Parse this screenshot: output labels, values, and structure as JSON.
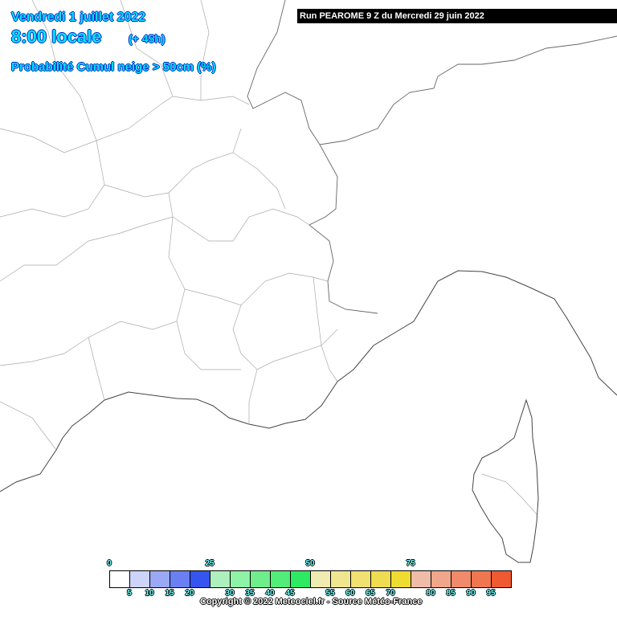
{
  "header": {
    "date": "Vendredi 1 juillet 2022",
    "time": "8:00 locale",
    "lead": "(+ 45h)",
    "parameter": "Probabilité Cumul neige > 50cm (%)",
    "run": "Run PEAROME 9 Z du Mercredi 29 juin 2022"
  },
  "legend": {
    "top_labels": [
      "0",
      "25",
      "50",
      "75"
    ],
    "bottom_labels": [
      "5",
      "10",
      "15",
      "20",
      "30",
      "35",
      "40",
      "45",
      "55",
      "60",
      "65",
      "70",
      "80",
      "85",
      "90",
      "95"
    ],
    "colors": [
      "#ffffff",
      "#ccd4fa",
      "#9aa8f5",
      "#6a80f2",
      "#3555ee",
      "#aeefbe",
      "#8ef3a6",
      "#6fef8c",
      "#52ec78",
      "#2eea62",
      "#f0ebb0",
      "#f0e690",
      "#f0e170",
      "#f0dc50",
      "#f0dc30",
      "#f0bcaa",
      "#f0a68a",
      "#f08a6a",
      "#f0764f",
      "#f05a32"
    ]
  },
  "footer": {
    "copyright": "Copyright © 2022 Meteociel.fr - Source Météo-France"
  }
}
